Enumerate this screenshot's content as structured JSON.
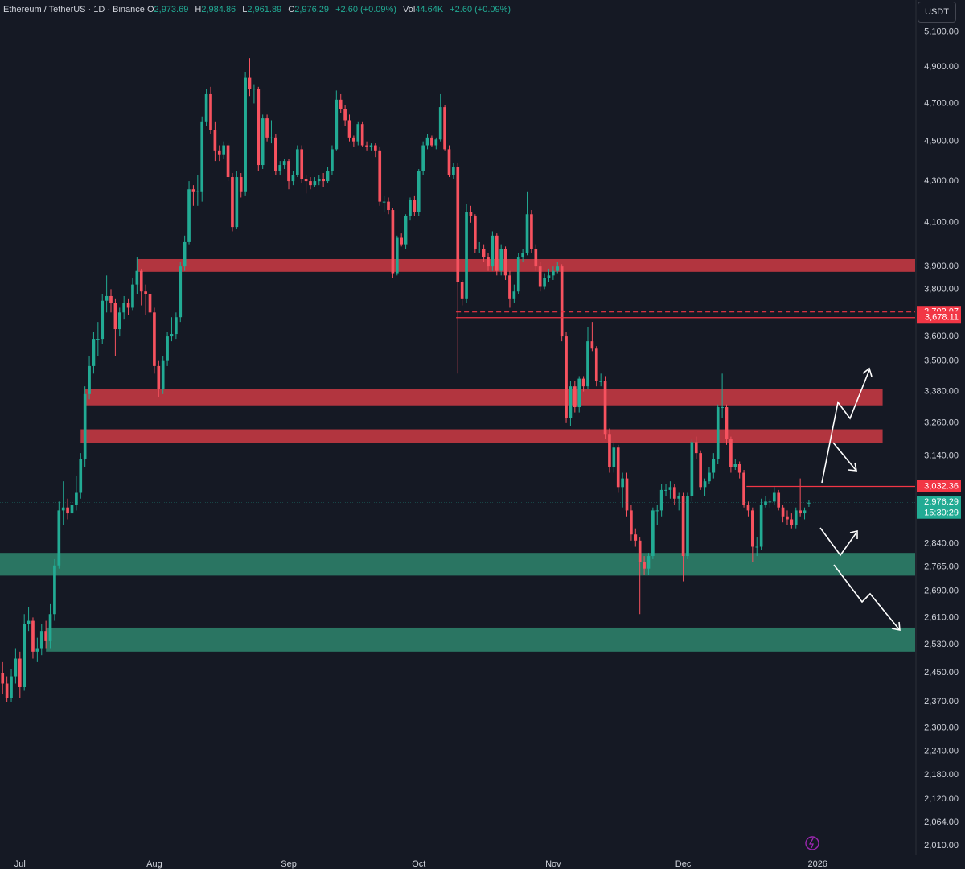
{
  "chart_data": {
    "type": "candlestick",
    "title": "Ethereum / TetherUS · 1D · Binance",
    "ohlc_legend": {
      "labels": [
        "O",
        "H",
        "L",
        "C"
      ],
      "values": [
        "2,973.69",
        "2,984.86",
        "2,961.89",
        "2,976.29"
      ],
      "change": "+2.60 (+0.09%)"
    },
    "volume": {
      "label": "Vol",
      "value": "44.64K",
      "change": "+2.60 (+0.09%)"
    },
    "currency": "USDT",
    "up_color": "#22ab94",
    "down_color": "#f7525f",
    "log_scale": true,
    "ylim": [
      1990,
      5290
    ],
    "yticks": [
      {
        "value": 5100,
        "label": "5,100.00"
      },
      {
        "value": 4900,
        "label": "4,900.00"
      },
      {
        "value": 4700,
        "label": "4,700.00"
      },
      {
        "value": 4500,
        "label": "4,500.00"
      },
      {
        "value": 4300,
        "label": "4,300.00"
      },
      {
        "value": 4100,
        "label": "4,100.00"
      },
      {
        "value": 3900,
        "label": "3,900.00"
      },
      {
        "value": 3800,
        "label": "3,800.00"
      },
      {
        "value": 3600,
        "label": "3,600.00"
      },
      {
        "value": 3500,
        "label": "3,500.00"
      },
      {
        "value": 3380,
        "label": "3,380.00"
      },
      {
        "value": 3260,
        "label": "3,260.00"
      },
      {
        "value": 3140,
        "label": "3,140.00"
      },
      {
        "value": 2840,
        "label": "2,840.00"
      },
      {
        "value": 2765,
        "label": "2,765.00"
      },
      {
        "value": 2690,
        "label": "2,690.00"
      },
      {
        "value": 2610,
        "label": "2,610.00"
      },
      {
        "value": 2530,
        "label": "2,530.00"
      },
      {
        "value": 2450,
        "label": "2,450.00"
      },
      {
        "value": 2370,
        "label": "2,370.00"
      },
      {
        "value": 2300,
        "label": "2,300.00"
      },
      {
        "value": 2240,
        "label": "2,240.00"
      },
      {
        "value": 2180,
        "label": "2,180.00"
      },
      {
        "value": 2120,
        "label": "2,120.00"
      },
      {
        "value": 2064,
        "label": "2,064.00"
      },
      {
        "value": 2010,
        "label": "2,010.00"
      }
    ],
    "xlim": [
      -0.6,
      210.5
    ],
    "xticks": [
      {
        "value": 4,
        "label": "Jul"
      },
      {
        "value": 35,
        "label": "Aug"
      },
      {
        "value": 66,
        "label": "Sep"
      },
      {
        "value": 96,
        "label": "Oct"
      },
      {
        "value": 127,
        "label": "Nov"
      },
      {
        "value": 157,
        "label": "Dec"
      },
      {
        "value": 188,
        "label": "2026"
      }
    ],
    "zones": [
      {
        "low": 3876,
        "high": 3933,
        "color": "#b2353f",
        "start": 31,
        "end": 210.5
      },
      {
        "low": 3327,
        "high": 3389,
        "color": "#b2353f",
        "start": 19,
        "end": 203
      },
      {
        "low": 3187,
        "high": 3237,
        "color": "#b2353f",
        "start": 18,
        "end": 203
      },
      {
        "low": 2738,
        "high": 2810,
        "color": "#2a7562",
        "start": -0.6,
        "end": 210.5
      },
      {
        "low": 2510,
        "high": 2580,
        "color": "#2a7562",
        "start": 10,
        "end": 210.5
      }
    ],
    "price_lines": [
      {
        "value": 3702.07,
        "label": "3,702.07",
        "style": "dashed",
        "start": 104.6
      },
      {
        "value": 3678.11,
        "label": "3,678.11",
        "style": "solid",
        "start": 104.6
      },
      {
        "value": 3032.36,
        "label": "3,032.36",
        "style": "solid",
        "start": 171.6
      }
    ],
    "last_price": {
      "label": "2,976.29",
      "countdown": "15:30:29"
    },
    "ohlc": [
      [
        2450,
        2480,
        2390,
        2420
      ],
      [
        2420,
        2440,
        2370,
        2380
      ],
      [
        2380,
        2460,
        2370,
        2440
      ],
      [
        2440,
        2520,
        2420,
        2490
      ],
      [
        2490,
        2510,
        2380,
        2410
      ],
      [
        2410,
        2620,
        2400,
        2590
      ],
      [
        2590,
        2640,
        2570,
        2600
      ],
      [
        2600,
        2610,
        2490,
        2510
      ],
      [
        2510,
        2550,
        2480,
        2520
      ],
      [
        2520,
        2590,
        2500,
        2570
      ],
      [
        2570,
        2600,
        2520,
        2540
      ],
      [
        2540,
        2650,
        2520,
        2620
      ],
      [
        2620,
        2790,
        2600,
        2770
      ],
      [
        2770,
        2980,
        2760,
        2950
      ],
      [
        2950,
        3050,
        2900,
        2960
      ],
      [
        2960,
        2990,
        2920,
        2940
      ],
      [
        2940,
        3000,
        2910,
        2970
      ],
      [
        2970,
        3070,
        2950,
        3010
      ],
      [
        3010,
        3150,
        2990,
        3130
      ],
      [
        3130,
        3400,
        3100,
        3370
      ],
      [
        3370,
        3520,
        3350,
        3480
      ],
      [
        3480,
        3620,
        3450,
        3590
      ],
      [
        3590,
        3660,
        3520,
        3590
      ],
      [
        3590,
        3780,
        3570,
        3750
      ],
      [
        3750,
        3860,
        3700,
        3770
      ],
      [
        3770,
        3800,
        3700,
        3740
      ],
      [
        3740,
        3760,
        3520,
        3630
      ],
      [
        3630,
        3720,
        3600,
        3700
      ],
      [
        3700,
        3770,
        3670,
        3740
      ],
      [
        3740,
        3760,
        3690,
        3720
      ],
      [
        3720,
        3850,
        3710,
        3820
      ],
      [
        3820,
        3940,
        3780,
        3880
      ],
      [
        3880,
        3890,
        3730,
        3790
      ],
      [
        3790,
        3820,
        3690,
        3780
      ],
      [
        3780,
        3800,
        3660,
        3700
      ],
      [
        3700,
        3720,
        3450,
        3480
      ],
      [
        3480,
        3500,
        3360,
        3390
      ],
      [
        3390,
        3520,
        3370,
        3500
      ],
      [
        3500,
        3620,
        3480,
        3600
      ],
      [
        3600,
        3680,
        3580,
        3610
      ],
      [
        3610,
        3700,
        3590,
        3680
      ],
      [
        3680,
        3920,
        3660,
        3900
      ],
      [
        3900,
        4040,
        3880,
        4010
      ],
      [
        4010,
        4300,
        4000,
        4260
      ],
      [
        4260,
        4280,
        4180,
        4250
      ],
      [
        4250,
        4330,
        4180,
        4250
      ],
      [
        4250,
        4630,
        4200,
        4600
      ],
      [
        4600,
        4780,
        4580,
        4750
      ],
      [
        4750,
        4790,
        4540,
        4560
      ],
      [
        4560,
        4600,
        4400,
        4450
      ],
      [
        4450,
        4480,
        4400,
        4430
      ],
      [
        4430,
        4500,
        4410,
        4480
      ],
      [
        4480,
        4490,
        4300,
        4320
      ],
      [
        4320,
        4340,
        4060,
        4080
      ],
      [
        4080,
        4350,
        4070,
        4320
      ],
      [
        4320,
        4340,
        4220,
        4250
      ],
      [
        4250,
        4870,
        4230,
        4840
      ],
      [
        4840,
        4950,
        4740,
        4780
      ],
      [
        4780,
        4800,
        4700,
        4780
      ],
      [
        4780,
        4790,
        4350,
        4380
      ],
      [
        4380,
        4640,
        4360,
        4620
      ],
      [
        4620,
        4640,
        4500,
        4520
      ],
      [
        4520,
        4610,
        4490,
        4520
      ],
      [
        4520,
        4540,
        4330,
        4350
      ],
      [
        4350,
        4400,
        4330,
        4380
      ],
      [
        4380,
        4410,
        4360,
        4400
      ],
      [
        4400,
        4410,
        4260,
        4300
      ],
      [
        4300,
        4350,
        4280,
        4330
      ],
      [
        4330,
        4480,
        4320,
        4460
      ],
      [
        4460,
        4480,
        4290,
        4310
      ],
      [
        4310,
        4330,
        4240,
        4300
      ],
      [
        4300,
        4320,
        4260,
        4280
      ],
      [
        4280,
        4320,
        4270,
        4300
      ],
      [
        4300,
        4330,
        4280,
        4310
      ],
      [
        4310,
        4340,
        4270,
        4300
      ],
      [
        4300,
        4370,
        4290,
        4350
      ],
      [
        4350,
        4480,
        4330,
        4460
      ],
      [
        4460,
        4770,
        4450,
        4720
      ],
      [
        4720,
        4750,
        4650,
        4670
      ],
      [
        4670,
        4690,
        4580,
        4610
      ],
      [
        4610,
        4640,
        4500,
        4520
      ],
      [
        4520,
        4530,
        4470,
        4500
      ],
      [
        4500,
        4600,
        4480,
        4590
      ],
      [
        4590,
        4600,
        4470,
        4480
      ],
      [
        4480,
        4500,
        4450,
        4470
      ],
      [
        4470,
        4490,
        4450,
        4480
      ],
      [
        4480,
        4490,
        4420,
        4450
      ],
      [
        4450,
        4470,
        4180,
        4200
      ],
      [
        4200,
        4230,
        4150,
        4200
      ],
      [
        4200,
        4220,
        4140,
        4160
      ],
      [
        4160,
        4170,
        3850,
        3870
      ],
      [
        3870,
        4040,
        3860,
        4030
      ],
      [
        4030,
        4050,
        3990,
        4000
      ],
      [
        4000,
        4140,
        3980,
        4130
      ],
      [
        4130,
        4220,
        4110,
        4210
      ],
      [
        4210,
        4230,
        4130,
        4150
      ],
      [
        4150,
        4360,
        4130,
        4350
      ],
      [
        4350,
        4500,
        4330,
        4480
      ],
      [
        4480,
        4540,
        4460,
        4520
      ],
      [
        4520,
        4530,
        4470,
        4480
      ],
      [
        4480,
        4520,
        4460,
        4510
      ],
      [
        4510,
        4750,
        4500,
        4680
      ],
      [
        4680,
        4690,
        4450,
        4460
      ],
      [
        4460,
        4480,
        4320,
        4330
      ],
      [
        4330,
        4390,
        4310,
        4370
      ],
      [
        4370,
        4390,
        3450,
        3830
      ],
      [
        3830,
        3840,
        3730,
        3760
      ],
      [
        3760,
        4190,
        3740,
        4150
      ],
      [
        4150,
        4180,
        4100,
        4130
      ],
      [
        4130,
        4140,
        3960,
        3980
      ],
      [
        3980,
        4010,
        3960,
        3980
      ],
      [
        3980,
        4000,
        3920,
        3940
      ],
      [
        3940,
        3960,
        3880,
        3900
      ],
      [
        3900,
        4060,
        3880,
        4040
      ],
      [
        4040,
        4050,
        3860,
        3880
      ],
      [
        3880,
        4000,
        3860,
        3980
      ],
      [
        3980,
        3990,
        3840,
        3860
      ],
      [
        3860,
        3880,
        3720,
        3760
      ],
      [
        3760,
        3820,
        3740,
        3790
      ],
      [
        3790,
        3960,
        3780,
        3940
      ],
      [
        3940,
        3980,
        3920,
        3960
      ],
      [
        3960,
        4250,
        3950,
        4140
      ],
      [
        4140,
        4160,
        3960,
        3980
      ],
      [
        3980,
        4000,
        3880,
        3900
      ],
      [
        3900,
        3920,
        3790,
        3810
      ],
      [
        3810,
        3870,
        3800,
        3850
      ],
      [
        3850,
        3890,
        3830,
        3860
      ],
      [
        3860,
        3900,
        3840,
        3880
      ],
      [
        3880,
        3920,
        3870,
        3900
      ],
      [
        3900,
        3910,
        3580,
        3600
      ],
      [
        3600,
        3620,
        3260,
        3280
      ],
      [
        3280,
        3420,
        3250,
        3400
      ],
      [
        3400,
        3420,
        3300,
        3320
      ],
      [
        3320,
        3440,
        3300,
        3430
      ],
      [
        3430,
        3440,
        3380,
        3400
      ],
      [
        3400,
        3640,
        3390,
        3580
      ],
      [
        3580,
        3660,
        3540,
        3550
      ],
      [
        3550,
        3560,
        3400,
        3420
      ],
      [
        3420,
        3450,
        3400,
        3420
      ],
      [
        3420,
        3440,
        3200,
        3220
      ],
      [
        3220,
        3240,
        3080,
        3100
      ],
      [
        3100,
        3190,
        3080,
        3170
      ],
      [
        3170,
        3180,
        3010,
        3030
      ],
      [
        3030,
        3080,
        2960,
        3060
      ],
      [
        3060,
        3080,
        2930,
        2950
      ],
      [
        2950,
        2970,
        2850,
        2870
      ],
      [
        2870,
        2890,
        2830,
        2850
      ],
      [
        2850,
        2860,
        2620,
        2780
      ],
      [
        2780,
        2800,
        2740,
        2760
      ],
      [
        2760,
        2810,
        2740,
        2800
      ],
      [
        2800,
        2960,
        2790,
        2950
      ],
      [
        2950,
        2970,
        2900,
        2950
      ],
      [
        2950,
        3040,
        2930,
        3020
      ],
      [
        3020,
        3040,
        3000,
        3020
      ],
      [
        3020,
        3050,
        2990,
        3030
      ],
      [
        3030,
        3040,
        2970,
        2990
      ],
      [
        2990,
        3010,
        2950,
        3000
      ],
      [
        3000,
        3010,
        2720,
        2800
      ],
      [
        2800,
        3010,
        2790,
        3000
      ],
      [
        3000,
        3200,
        2980,
        3190
      ],
      [
        3190,
        3210,
        3130,
        3150
      ],
      [
        3150,
        3160,
        3020,
        3030
      ],
      [
        3030,
        3060,
        3000,
        3050
      ],
      [
        3050,
        3100,
        3040,
        3080
      ],
      [
        3080,
        3150,
        3060,
        3130
      ],
      [
        3130,
        3330,
        3110,
        3320
      ],
      [
        3320,
        3450,
        3280,
        3320
      ],
      [
        3320,
        3330,
        3180,
        3200
      ],
      [
        3200,
        3210,
        3080,
        3100
      ],
      [
        3100,
        3130,
        3090,
        3110
      ],
      [
        3110,
        3120,
        3060,
        3080
      ],
      [
        3080,
        3090,
        2960,
        2970
      ],
      [
        2970,
        2980,
        2930,
        2950
      ],
      [
        2950,
        2960,
        2780,
        2830
      ],
      [
        2830,
        2860,
        2800,
        2830
      ],
      [
        2830,
        2990,
        2820,
        2970
      ],
      [
        2970,
        3000,
        2960,
        2980
      ],
      [
        2980,
        2990,
        2960,
        2980
      ],
      [
        2980,
        3030,
        2970,
        3010
      ],
      [
        3010,
        3020,
        2950,
        2960
      ],
      [
        2960,
        2970,
        2910,
        2930
      ],
      [
        2930,
        2950,
        2900,
        2920
      ],
      [
        2920,
        2940,
        2890,
        2900
      ],
      [
        2900,
        2960,
        2890,
        2950
      ],
      [
        2950,
        3060,
        2930,
        2940
      ],
      [
        2940,
        2960,
        2920,
        2950
      ],
      [
        2973.69,
        2984.86,
        2961.89,
        2976.29
      ]
    ]
  }
}
